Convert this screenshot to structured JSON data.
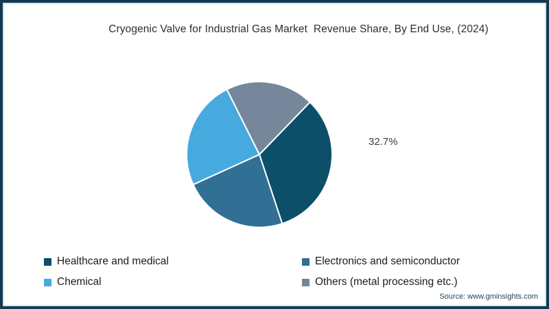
{
  "frame": {
    "border_color": "#123a52",
    "inner_line_color": "#d3e5ef",
    "background": "#ffffff"
  },
  "title": "Cryogenic Valve for Industrial Gas Market  Revenue Share, By End Use, (2024)",
  "callout_label": "32.7%",
  "legend": {
    "items": [
      {
        "label": "Healthcare and medical",
        "color": "#0c4f68"
      },
      {
        "label": "Electronics and semiconductor",
        "color": "#326f94"
      },
      {
        "label": "Chemical",
        "color": "#47aadf"
      },
      {
        "label": "Others (metal processing etc.)",
        "color": "#76879b"
      }
    ]
  },
  "source": "Source: www.gminsights.com",
  "chart_data": {
    "type": "pie",
    "title": "Cryogenic Valve for Industrial Gas Market Revenue Share, By End Use, (2024)",
    "labels": [
      "Healthcare and medical",
      "Electronics and semiconductor",
      "Chemical",
      "Others (metal processing etc.)"
    ],
    "values": [
      32.7,
      23.3,
      24.4,
      19.6
    ],
    "colors": [
      "#0c4f68",
      "#326f94",
      "#47aadf",
      "#76879b"
    ],
    "data_labels": [
      "32.7%",
      "",
      "",
      ""
    ],
    "start_angle_deg": 46,
    "direction": "clockwise",
    "slice_separator": {
      "color": "#ffffff",
      "width": 2
    },
    "legend_position": "bottom",
    "values_note": "Only 32.7% is labeled in the image; remaining values estimated from slice arc angles."
  }
}
